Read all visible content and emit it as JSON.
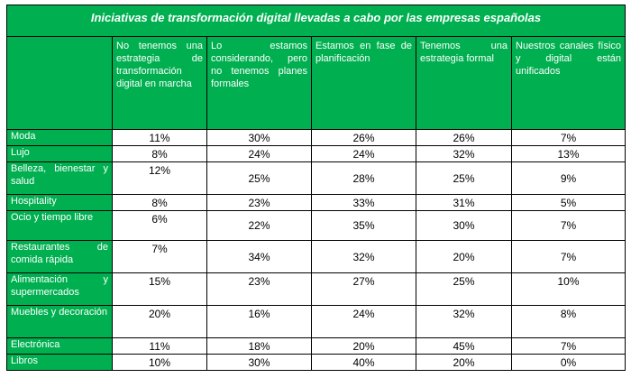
{
  "title": "Iniciativas de transformación digital llevadas a cabo por las empresas españolas",
  "columns": [
    "No tenemos una estrategia de transformación digital en marcha",
    "Lo estamos considerando, pero no tenemos planes formales",
    "Estamos en fase de planificación",
    "Tenemos una estrategia formal",
    "Nuestros canales físico y digital están unificados"
  ],
  "rows": [
    {
      "label": "Moda",
      "values": [
        "11%",
        "30%",
        "26%",
        "26%",
        "7%"
      ]
    },
    {
      "label": "Lujo",
      "values": [
        "8%",
        "24%",
        "24%",
        "32%",
        "13%"
      ]
    },
    {
      "label": "Belleza, bienestar y salud",
      "values": [
        "12%",
        "25%",
        "28%",
        "25%",
        "9%"
      ]
    },
    {
      "label": "Hospitality",
      "values": [
        "8%",
        "23%",
        "33%",
        "31%",
        "5%"
      ]
    },
    {
      "label": "Ocio y tiempo libre",
      "values": [
        "6%",
        "22%",
        "35%",
        "30%",
        "7%"
      ]
    },
    {
      "label": "Restaurantes de comida rápida",
      "values": [
        "7%",
        "34%",
        "32%",
        "20%",
        "7%"
      ]
    },
    {
      "label": "Alimentación y supermercados",
      "values": [
        "15%",
        "23%",
        "27%",
        "25%",
        "10%"
      ]
    },
    {
      "label": "Muebles y decoración",
      "values": [
        "20%",
        "16%",
        "24%",
        "32%",
        "8%"
      ]
    },
    {
      "label": "Electrónica",
      "values": [
        "11%",
        "18%",
        "20%",
        "45%",
        "7%"
      ]
    },
    {
      "label": "Libros",
      "values": [
        "10%",
        "30%",
        "40%",
        "20%",
        "0%"
      ]
    }
  ]
}
